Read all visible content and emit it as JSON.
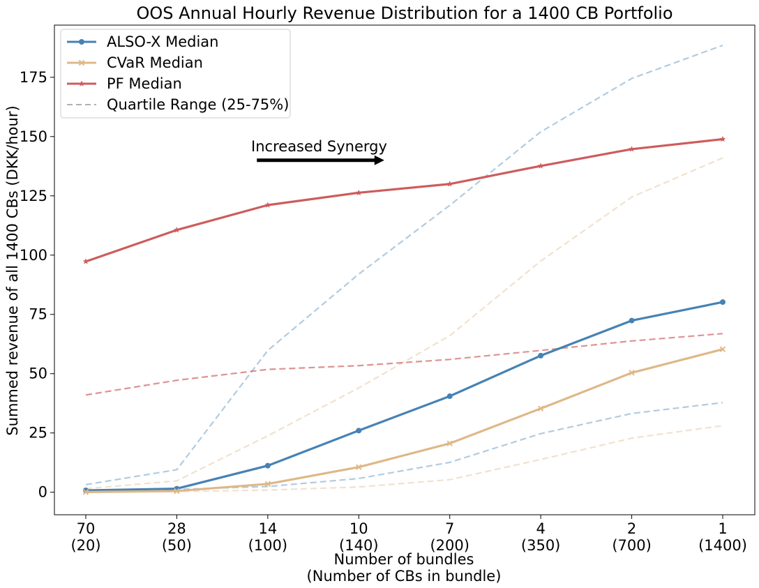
{
  "chart_data": {
    "type": "line",
    "title": "OOS Annual Hourly Revenue Distribution for a 1400 CB Portfolio",
    "xlabel_lines": [
      "Number of bundles",
      "(Number of CBs in bundle)"
    ],
    "ylabel": "Summed revenue of all 1400 CBs (DKK/hour)",
    "x_ticks": [
      {
        "top": "70",
        "bottom": "(20)"
      },
      {
        "top": "28",
        "bottom": "(50)"
      },
      {
        "top": "14",
        "bottom": "(100)"
      },
      {
        "top": "10",
        "bottom": "(140)"
      },
      {
        "top": "7",
        "bottom": "(200)"
      },
      {
        "top": "4",
        "bottom": "(350)"
      },
      {
        "top": "2",
        "bottom": "(700)"
      },
      {
        "top": "1",
        "bottom": "(1400)"
      }
    ],
    "y_ticks": [
      0,
      25,
      50,
      75,
      100,
      125,
      150,
      175
    ],
    "ylim": [
      -9.5,
      197
    ],
    "grid": false,
    "legend_position": "top-left",
    "series": [
      {
        "name": "ALSO-X Median",
        "color": "#4682b4",
        "marker": "circle",
        "values": [
          0.8,
          1.5,
          11.2,
          26.0,
          40.5,
          57.6,
          72.4,
          80.2
        ]
      },
      {
        "name": "CVaR Median",
        "color": "#deb887",
        "marker": "x",
        "values": [
          0.1,
          0.5,
          3.5,
          10.6,
          20.6,
          35.3,
          50.4,
          60.3
        ]
      },
      {
        "name": "PF Median",
        "color": "#cd5c5c",
        "marker": "star",
        "values": [
          97.3,
          110.6,
          121.1,
          126.3,
          130.0,
          137.6,
          144.7,
          148.9
        ]
      }
    ],
    "quartile_legend_label": "Quartile Range (25-75%)",
    "quartiles": [
      {
        "color": "#4682b4",
        "lower": [
          0.8,
          1.2,
          2.4,
          5.8,
          12.6,
          24.7,
          33.2,
          37.8
        ],
        "upper": [
          3.2,
          9.5,
          59.8,
          92.0,
          121.0,
          152.0,
          174.5,
          188.5
        ]
      },
      {
        "color": "#deb887",
        "lower": [
          0.0,
          0.3,
          0.9,
          2.2,
          5.3,
          13.8,
          22.8,
          28.1
        ],
        "upper": [
          1.5,
          4.8,
          23.8,
          44.0,
          66.0,
          97.5,
          124.5,
          141.0
        ]
      },
      {
        "color": "#cd5c5c",
        "lower": [
          41.0,
          47.2,
          51.8,
          53.4,
          56.0,
          59.8,
          63.8,
          66.9
        ],
        "upper": [
          41.0,
          47.2,
          51.8,
          53.4,
          56.0,
          59.8,
          63.8,
          66.9
        ]
      }
    ],
    "annotation": {
      "text": "Increased Synergy",
      "arrow_from_x": 1.88,
      "arrow_to_x": 3.28,
      "y": 140
    }
  }
}
